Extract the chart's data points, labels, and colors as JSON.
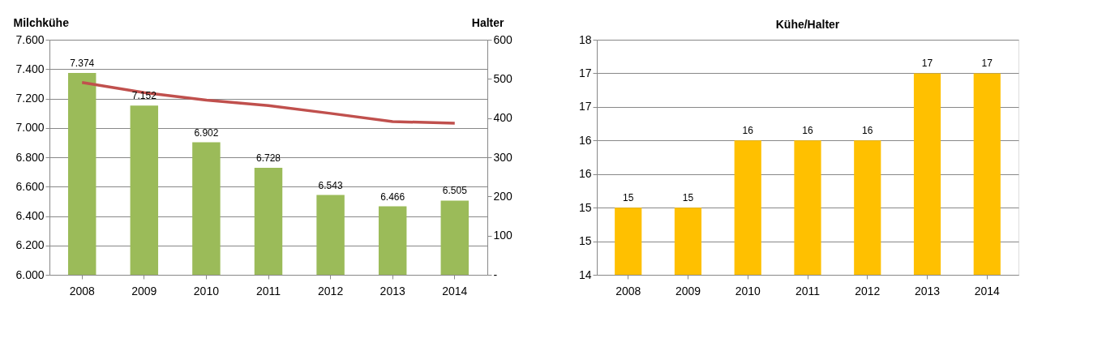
{
  "chart_data": [
    {
      "type": "bar",
      "categories": [
        "2008",
        "2009",
        "2010",
        "2011",
        "2012",
        "2013",
        "2014"
      ],
      "ylabel": "Milchkühe",
      "y2label": "Halter",
      "ylim": [
        6000,
        7600
      ],
      "yticks": [
        {
          "value": 6000,
          "label": "6.000"
        },
        {
          "value": 6200,
          "label": "6.200"
        },
        {
          "value": 6400,
          "label": "6.400"
        },
        {
          "value": 6600,
          "label": "6.600"
        },
        {
          "value": 6800,
          "label": "6.800"
        },
        {
          "value": 7000,
          "label": "7.000"
        },
        {
          "value": 7200,
          "label": "7.200"
        },
        {
          "value": 7400,
          "label": "7.400"
        },
        {
          "value": 7600,
          "label": "7.600"
        }
      ],
      "y2lim": [
        0,
        600
      ],
      "y2ticks": [
        {
          "value": 0,
          "label": "-"
        },
        100,
        200,
        300,
        400,
        500,
        600
      ],
      "grid": "y",
      "series": [
        {
          "color": "#9bbb59",
          "values": [
            7374,
            7152,
            6902,
            6728,
            6543,
            6466,
            6505
          ],
          "value_labels": [
            "7.374",
            "7.152",
            "6.902",
            "6.728",
            "6.543",
            "6.466",
            "6.505"
          ]
        },
        {
          "type": "line",
          "axis": "y2",
          "color": "#c0504d",
          "values": [
            491,
            465,
            446,
            432,
            412,
            391,
            387
          ]
        }
      ]
    },
    {
      "type": "bar",
      "title": "Kühe/Halter",
      "categories": [
        "2008",
        "2009",
        "2010",
        "2011",
        "2012",
        "2013",
        "2014"
      ],
      "ylim": [
        14,
        17.5
      ],
      "yticks": [
        14,
        {
          "value": 14.5,
          "label": "15"
        },
        15,
        {
          "value": 15.5,
          "label": "16"
        },
        16,
        {
          "value": 16.5,
          "label": "17"
        },
        17,
        {
          "value": 17.5,
          "label": "18"
        }
      ],
      "grid": "y",
      "data_labels": true,
      "series": [
        {
          "color": "#ffc000",
          "values": [
            15,
            15,
            16,
            16,
            16,
            17,
            17
          ]
        }
      ]
    }
  ]
}
